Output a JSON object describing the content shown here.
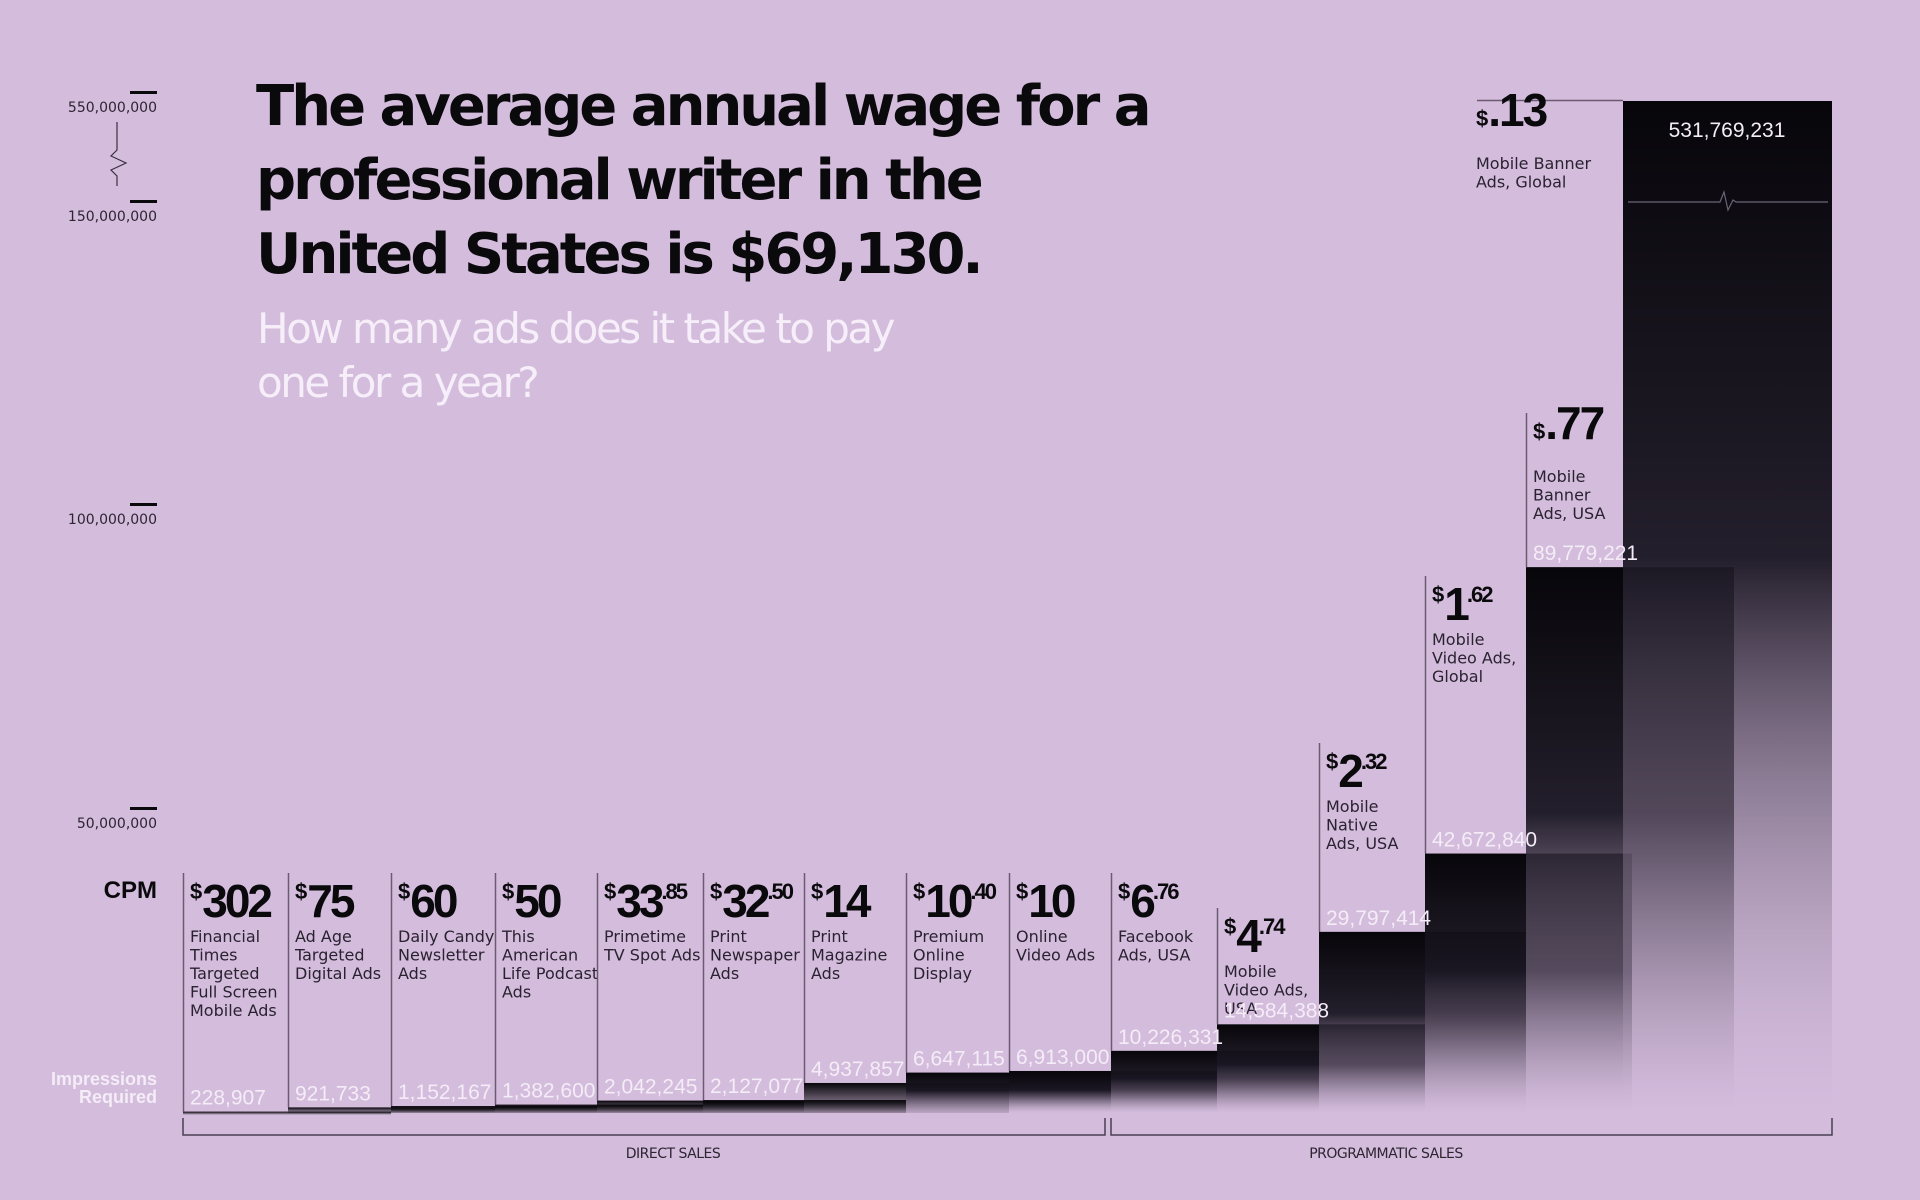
{
  "header": {
    "title": "The average annual wage for a professional writer in the United States is $69,130.",
    "subtitle": "How many ads does it take to pay one for a year?"
  },
  "colors": {
    "background": "#d4bcdd",
    "bar_dark": "#07060a",
    "text_dark": "#0a0a0c",
    "text_light": "#f4ecf6"
  },
  "chart_data": {
    "type": "bar",
    "title": "The average annual wage for a professional writer in the United States is $69,130.",
    "subtitle": "How many ads does it take to pay one for a year?",
    "xlabel": "",
    "ylabel": "Impressions Required",
    "row_labels": {
      "cpm": "CPM",
      "impressions": "Impressions Required"
    },
    "y_ticks": [
      {
        "value": 50000000,
        "label": "50,000,000"
      },
      {
        "value": 100000000,
        "label": "100,000,000"
      },
      {
        "value": 150000000,
        "label": "150,000,000"
      },
      {
        "value": 550000000,
        "label": "550,000,000"
      }
    ],
    "y_axis_break": [
      150000000,
      550000000
    ],
    "ylim": [
      0,
      550000000
    ],
    "grid": false,
    "groups": [
      {
        "label": "DIRECT SALES",
        "from": 0,
        "to": 8
      },
      {
        "label": "PROGRAMMATIC SALES",
        "from": 9,
        "to": 15
      }
    ],
    "categories": [
      "Financial Times Targeted Full Screen Mobile Ads",
      "Ad Age Targeted Digital Ads",
      "Daily Candy Newsletter Ads",
      "This American Life Podcast Ads",
      "Primetime TV Spot Ads",
      "Print Newspaper Ads",
      "Print Magazine Ads",
      "Premium Online Display",
      "Online Video Ads",
      "Facebook Ads, USA",
      "Mobile Video Ads, USA",
      "Mobile Native Ads, USA",
      "Mobile Video Ads, Global",
      "Mobile Banner Ads, USA",
      "Mobile Banner Ads, Global"
    ],
    "items": [
      {
        "cpm_whole": "302",
        "cpm_cents": "",
        "cpm": 302,
        "lines": [
          "Financial",
          "Times",
          "Targeted",
          "Full Screen",
          "Mobile Ads"
        ],
        "impressions": 228907,
        "impressions_label": "228,907"
      },
      {
        "cpm_whole": "75",
        "cpm_cents": "",
        "cpm": 75,
        "lines": [
          "Ad Age",
          "Targeted",
          "Digital Ads"
        ],
        "impressions": 921733,
        "impressions_label": "921,733"
      },
      {
        "cpm_whole": "60",
        "cpm_cents": "",
        "cpm": 60,
        "lines": [
          "Daily Candy",
          "Newsletter",
          "Ads"
        ],
        "impressions": 1152167,
        "impressions_label": "1,152,167"
      },
      {
        "cpm_whole": "50",
        "cpm_cents": "",
        "cpm": 50,
        "lines": [
          "This",
          "American",
          "Life Podcast",
          "Ads"
        ],
        "impressions": 1382600,
        "impressions_label": "1,382,600"
      },
      {
        "cpm_whole": "33",
        "cpm_cents": ".85",
        "cpm": 33.85,
        "lines": [
          "Primetime",
          "TV Spot Ads"
        ],
        "impressions": 2042245,
        "impressions_label": "2,042,245"
      },
      {
        "cpm_whole": "32",
        "cpm_cents": ".50",
        "cpm": 32.5,
        "lines": [
          "Print",
          "Newspaper",
          "Ads"
        ],
        "impressions": 2127077,
        "impressions_label": "2,127,077"
      },
      {
        "cpm_whole": "14",
        "cpm_cents": "",
        "cpm": 14,
        "lines": [
          "Print",
          "Magazine",
          "Ads"
        ],
        "impressions": 4937857,
        "impressions_label": "4,937,857"
      },
      {
        "cpm_whole": "10",
        "cpm_cents": ".40",
        "cpm": 10.4,
        "lines": [
          "Premium",
          "Online",
          "Display"
        ],
        "impressions": 6647115,
        "impressions_label": "6,647,115"
      },
      {
        "cpm_whole": "10",
        "cpm_cents": "",
        "cpm": 10,
        "lines": [
          "Online",
          "Video Ads"
        ],
        "impressions": 6913000,
        "impressions_label": "6,913,000"
      },
      {
        "cpm_whole": "6",
        "cpm_cents": ".76",
        "cpm": 6.76,
        "lines": [
          "Facebook",
          "Ads, USA"
        ],
        "impressions": 10226331,
        "impressions_label": "10,226,331"
      },
      {
        "cpm_whole": "4",
        "cpm_cents": ".74",
        "cpm": 4.74,
        "lines": [
          "Mobile",
          "Video Ads,",
          "USA"
        ],
        "impressions": 14584388,
        "impressions_label": "14,584,388"
      },
      {
        "cpm_whole": "2",
        "cpm_cents": ".32",
        "cpm": 2.32,
        "lines": [
          "Mobile",
          "Native",
          "Ads, USA"
        ],
        "impressions": 29797414,
        "impressions_label": "29,797,414"
      },
      {
        "cpm_whole": "1",
        "cpm_cents": ".62",
        "cpm": 1.62,
        "lines": [
          "Mobile",
          "Video Ads,",
          "Global"
        ],
        "impressions": 42672840,
        "impressions_label": "42,672,840"
      },
      {
        "cpm_whole": "",
        "cpm_cents": ".77",
        "cpm": 0.77,
        "lines": [
          "Mobile",
          "Banner",
          "Ads, USA"
        ],
        "impressions": 89779221,
        "impressions_label": "89,779,221"
      },
      {
        "cpm_whole": "",
        "cpm_cents": ".13",
        "cpm": 0.13,
        "lines": [
          "Mobile Banner",
          "Ads, Global"
        ],
        "impressions": 531769231,
        "impressions_label": "531,769,231"
      }
    ]
  }
}
